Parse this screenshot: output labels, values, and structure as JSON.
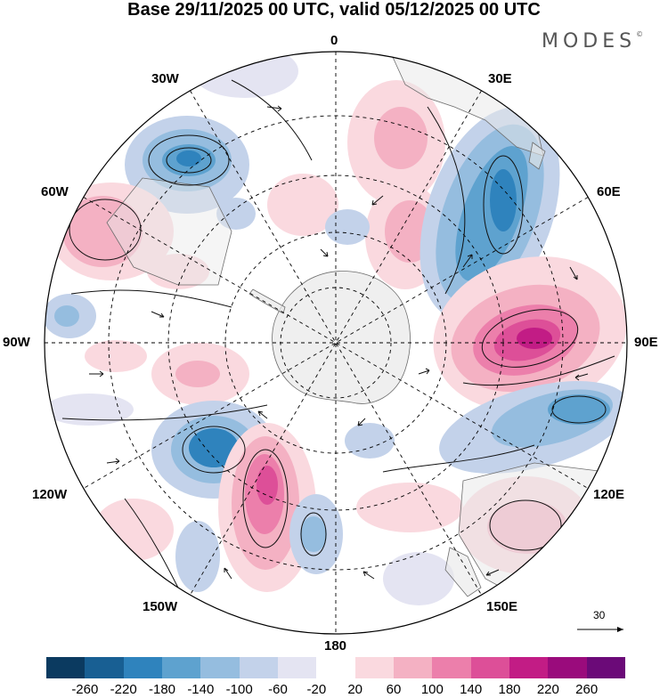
{
  "title": "Base 29/11/2025 00 UTC, valid 05/12/2025 00 UTC",
  "brand": "MODES",
  "brand_mark": "©",
  "longitude_labels": {
    "lon_0": "0",
    "lon_30e": "30E",
    "lon_60e": "60E",
    "lon_90e": "90E",
    "lon_120e": "120E",
    "lon_150e": "150E",
    "lon_180": "180",
    "lon_150w": "150W",
    "lon_120w": "120W",
    "lon_90w": "90W",
    "lon_60w": "60W",
    "lon_30w": "30W"
  },
  "reference_vector": "30",
  "colorbar": {
    "colors": [
      "#0b3a60",
      "#185f93",
      "#2f83bd",
      "#5ea2cf",
      "#95bddf",
      "#c3d2ea",
      "#e4e4f2",
      "#ffffff",
      "#fad9df",
      "#f4b1c3",
      "#ec7fab",
      "#dd4f98",
      "#c21c85",
      "#9a0b7c",
      "#6b0a78"
    ],
    "labels": [
      "-260",
      "-220",
      "-180",
      "-140",
      "-100",
      "-60",
      "-20",
      "20",
      "60",
      "100",
      "140",
      "180",
      "220",
      "260"
    ]
  },
  "colors": {
    "land": "#e8e8e8",
    "coast": "#6e6e6e",
    "grid": "#000000"
  }
}
